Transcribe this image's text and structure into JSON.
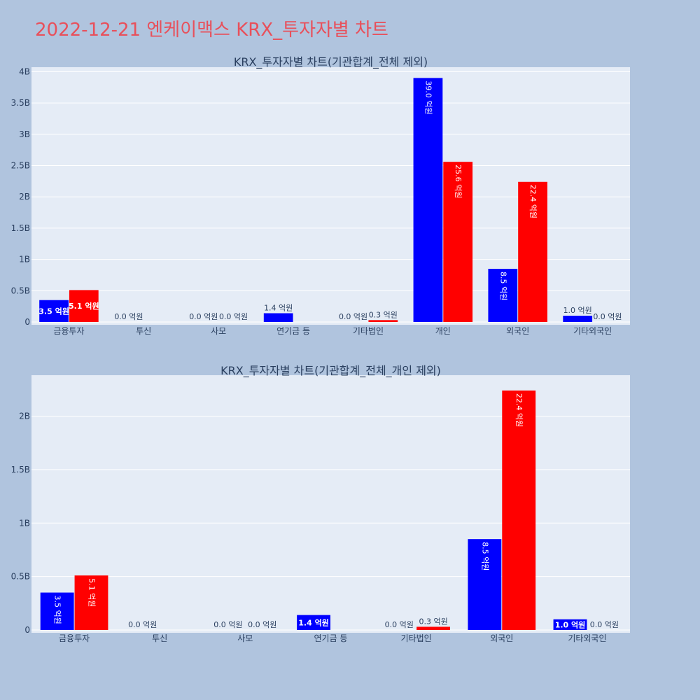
{
  "page_title": "2022-12-21 엔케이맥스 KRX_투자자별 차트",
  "colors": {
    "background": "#b0c4de",
    "plot_bg": "#e5ecf6",
    "grid": "#ffffff",
    "title": "#e8505b",
    "text": "#2a3f5f",
    "series_buy": "#0000ff",
    "series_sell": "#ff0000"
  },
  "chart_data": [
    {
      "type": "bar",
      "title": "KRX_투자자별 차트(기관합계_전체 제외)",
      "categories": [
        "금융투자",
        "투신",
        "사모",
        "연기금 등",
        "기타법인",
        "개인",
        "외국인",
        "기타외국인"
      ],
      "ylim": [
        0,
        4050000000
      ],
      "yticks": [
        0,
        500000000,
        1000000000,
        1500000000,
        2000000000,
        2500000000,
        3000000000,
        3500000000,
        4000000000
      ],
      "ytick_labels": [
        "0",
        "0.5B",
        "1B",
        "1.5B",
        "2B",
        "2.5B",
        "3B",
        "3.5B",
        "4B"
      ],
      "grid": true,
      "series": [
        {
          "color": "#0000ff",
          "values": [
            350000000,
            0,
            0,
            140000000,
            0,
            3900000000,
            850000000,
            100000000
          ],
          "labels": [
            "3.5 억원",
            "0.0 억원",
            "0.0 억원",
            "1.4 억원",
            "0.0 억원",
            "39.0 억원",
            "8.5 억원",
            "1.0 억원"
          ]
        },
        {
          "color": "#ff0000",
          "values": [
            510000000,
            0,
            0,
            0,
            30000000,
            2560000000,
            2240000000,
            0
          ],
          "labels": [
            "5.1 억원",
            "",
            "0.0 억원",
            "",
            "0.3 억원",
            "25.6 억원",
            "22.4 억원",
            "0.0 억원"
          ]
        }
      ]
    },
    {
      "type": "bar",
      "title": "KRX_투자자별 차트(기관합계_전체_개인 제외)",
      "categories": [
        "금융투자",
        "투신",
        "사모",
        "연기금 등",
        "기타법인",
        "외국인",
        "기타외국인"
      ],
      "ylim": [
        0,
        2370000000
      ],
      "yticks": [
        0,
        500000000,
        1000000000,
        1500000000,
        2000000000
      ],
      "ytick_labels": [
        "0",
        "0.5B",
        "1B",
        "1.5B",
        "2B"
      ],
      "grid": true,
      "series": [
        {
          "color": "#0000ff",
          "values": [
            350000000,
            0,
            0,
            140000000,
            0,
            850000000,
            100000000
          ],
          "labels": [
            "3.5 억원",
            "0.0 억원",
            "0.0 억원",
            "1.4 억원",
            "0.0 억원",
            "8.5 억원",
            "1.0 억원"
          ]
        },
        {
          "color": "#ff0000",
          "values": [
            510000000,
            0,
            0,
            0,
            30000000,
            2240000000,
            0
          ],
          "labels": [
            "5.1 억원",
            "",
            "0.0 억원",
            "",
            "0.3 억원",
            "22.4 억원",
            "0.0 억원"
          ]
        }
      ]
    }
  ]
}
